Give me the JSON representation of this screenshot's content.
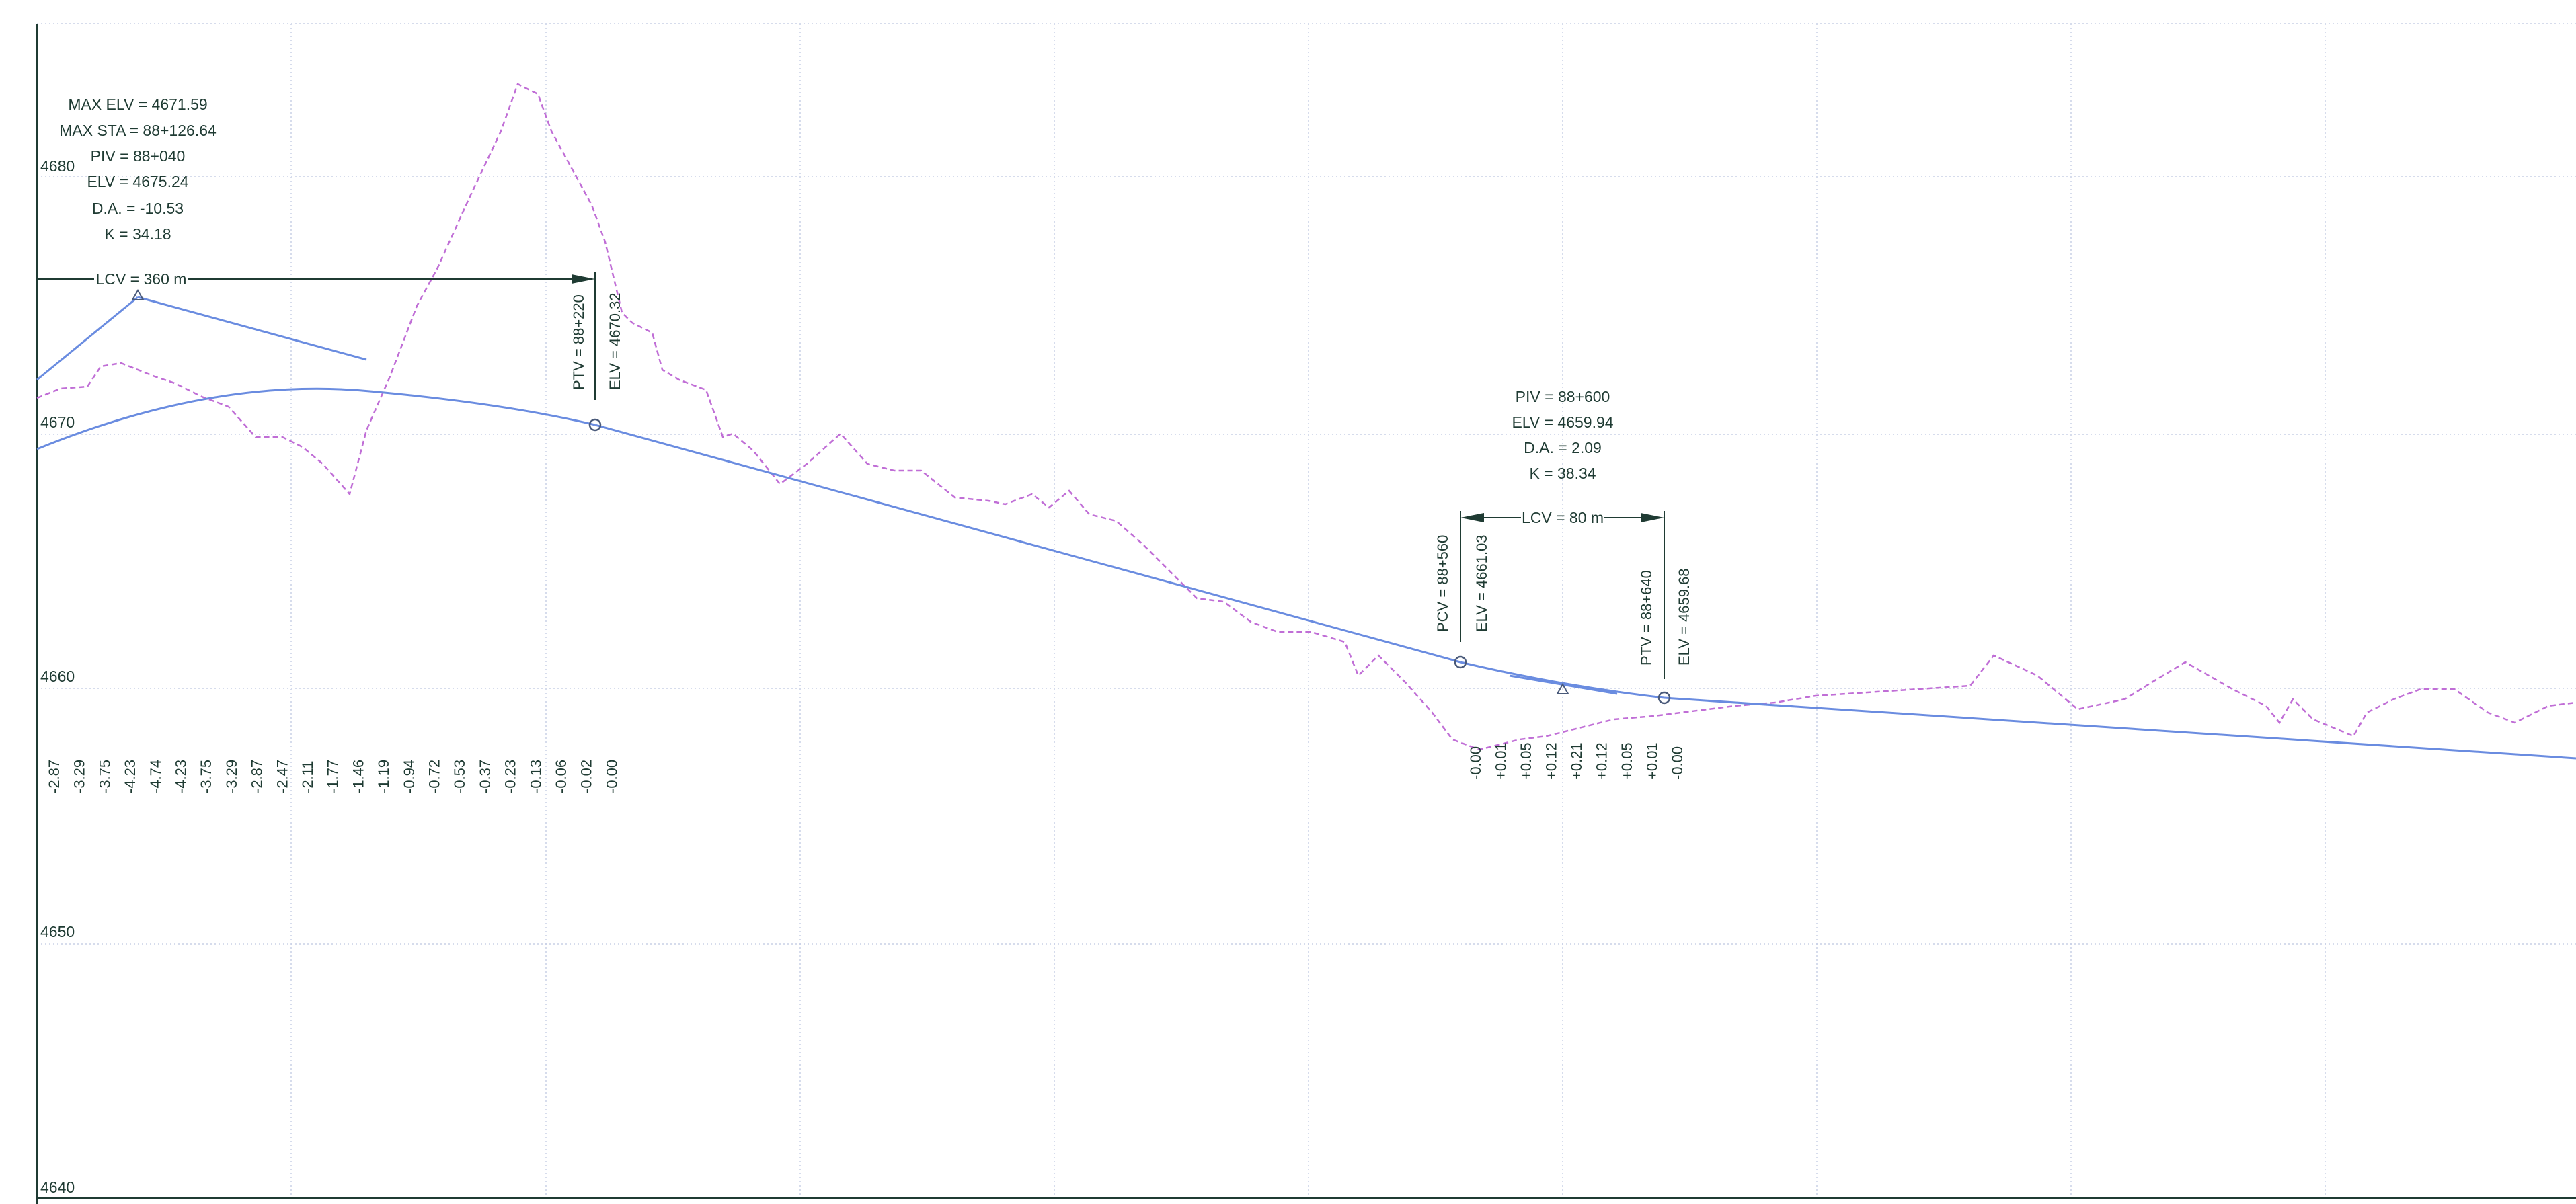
{
  "y_axis": {
    "labels": [
      "4680",
      "4670",
      "4660",
      "4650",
      "4640"
    ]
  },
  "left_curve": {
    "info": [
      "MAX ELV = 4671.59",
      "MAX STA = 88+126.64",
      "PIV = 88+040",
      "ELV = 4675.24",
      "D.A. = -10.53",
      "K = 34.18"
    ],
    "lcv": "LCV = 360 m",
    "ptv_sta": "PTV = 88+220",
    "ptv_elv": "ELV = 4670.32"
  },
  "right_curve": {
    "info": [
      "PIV = 88+600",
      "ELV = 4659.94",
      "D.A. = 2.09",
      "K = 38.34"
    ],
    "lcv": "LCV = 80 m",
    "pcv_sta": "PCV = 88+560",
    "pcv_elv": "ELV = 4661.03",
    "ptv_sta": "PTV = 88+640",
    "ptv_elv": "ELV = 4659.68"
  },
  "offsets_left": [
    "-2.87",
    "-3.29",
    "-3.75",
    "-4.23",
    "-4.74",
    "-4.23",
    "-3.75",
    "-3.29",
    "-2.87",
    "-2.47",
    "-2.11",
    "-1.77",
    "-1.46",
    "-1.19",
    "-0.94",
    "-0.72",
    "-0.53",
    "-0.37",
    "-0.23",
    "-0.13",
    "-0.06",
    "-0.02",
    "-0.00"
  ],
  "offsets_right": [
    "-0.00",
    "+0.01",
    "+0.05",
    "+0.12",
    "+0.21",
    "+0.12",
    "+0.05",
    "+0.01",
    "-0.00"
  ],
  "colors": {
    "grade_line": "#6a8ce0",
    "ground_line": "#c06ed6",
    "annotation": "#1f3b33",
    "grid": "#c9d0e6"
  }
}
